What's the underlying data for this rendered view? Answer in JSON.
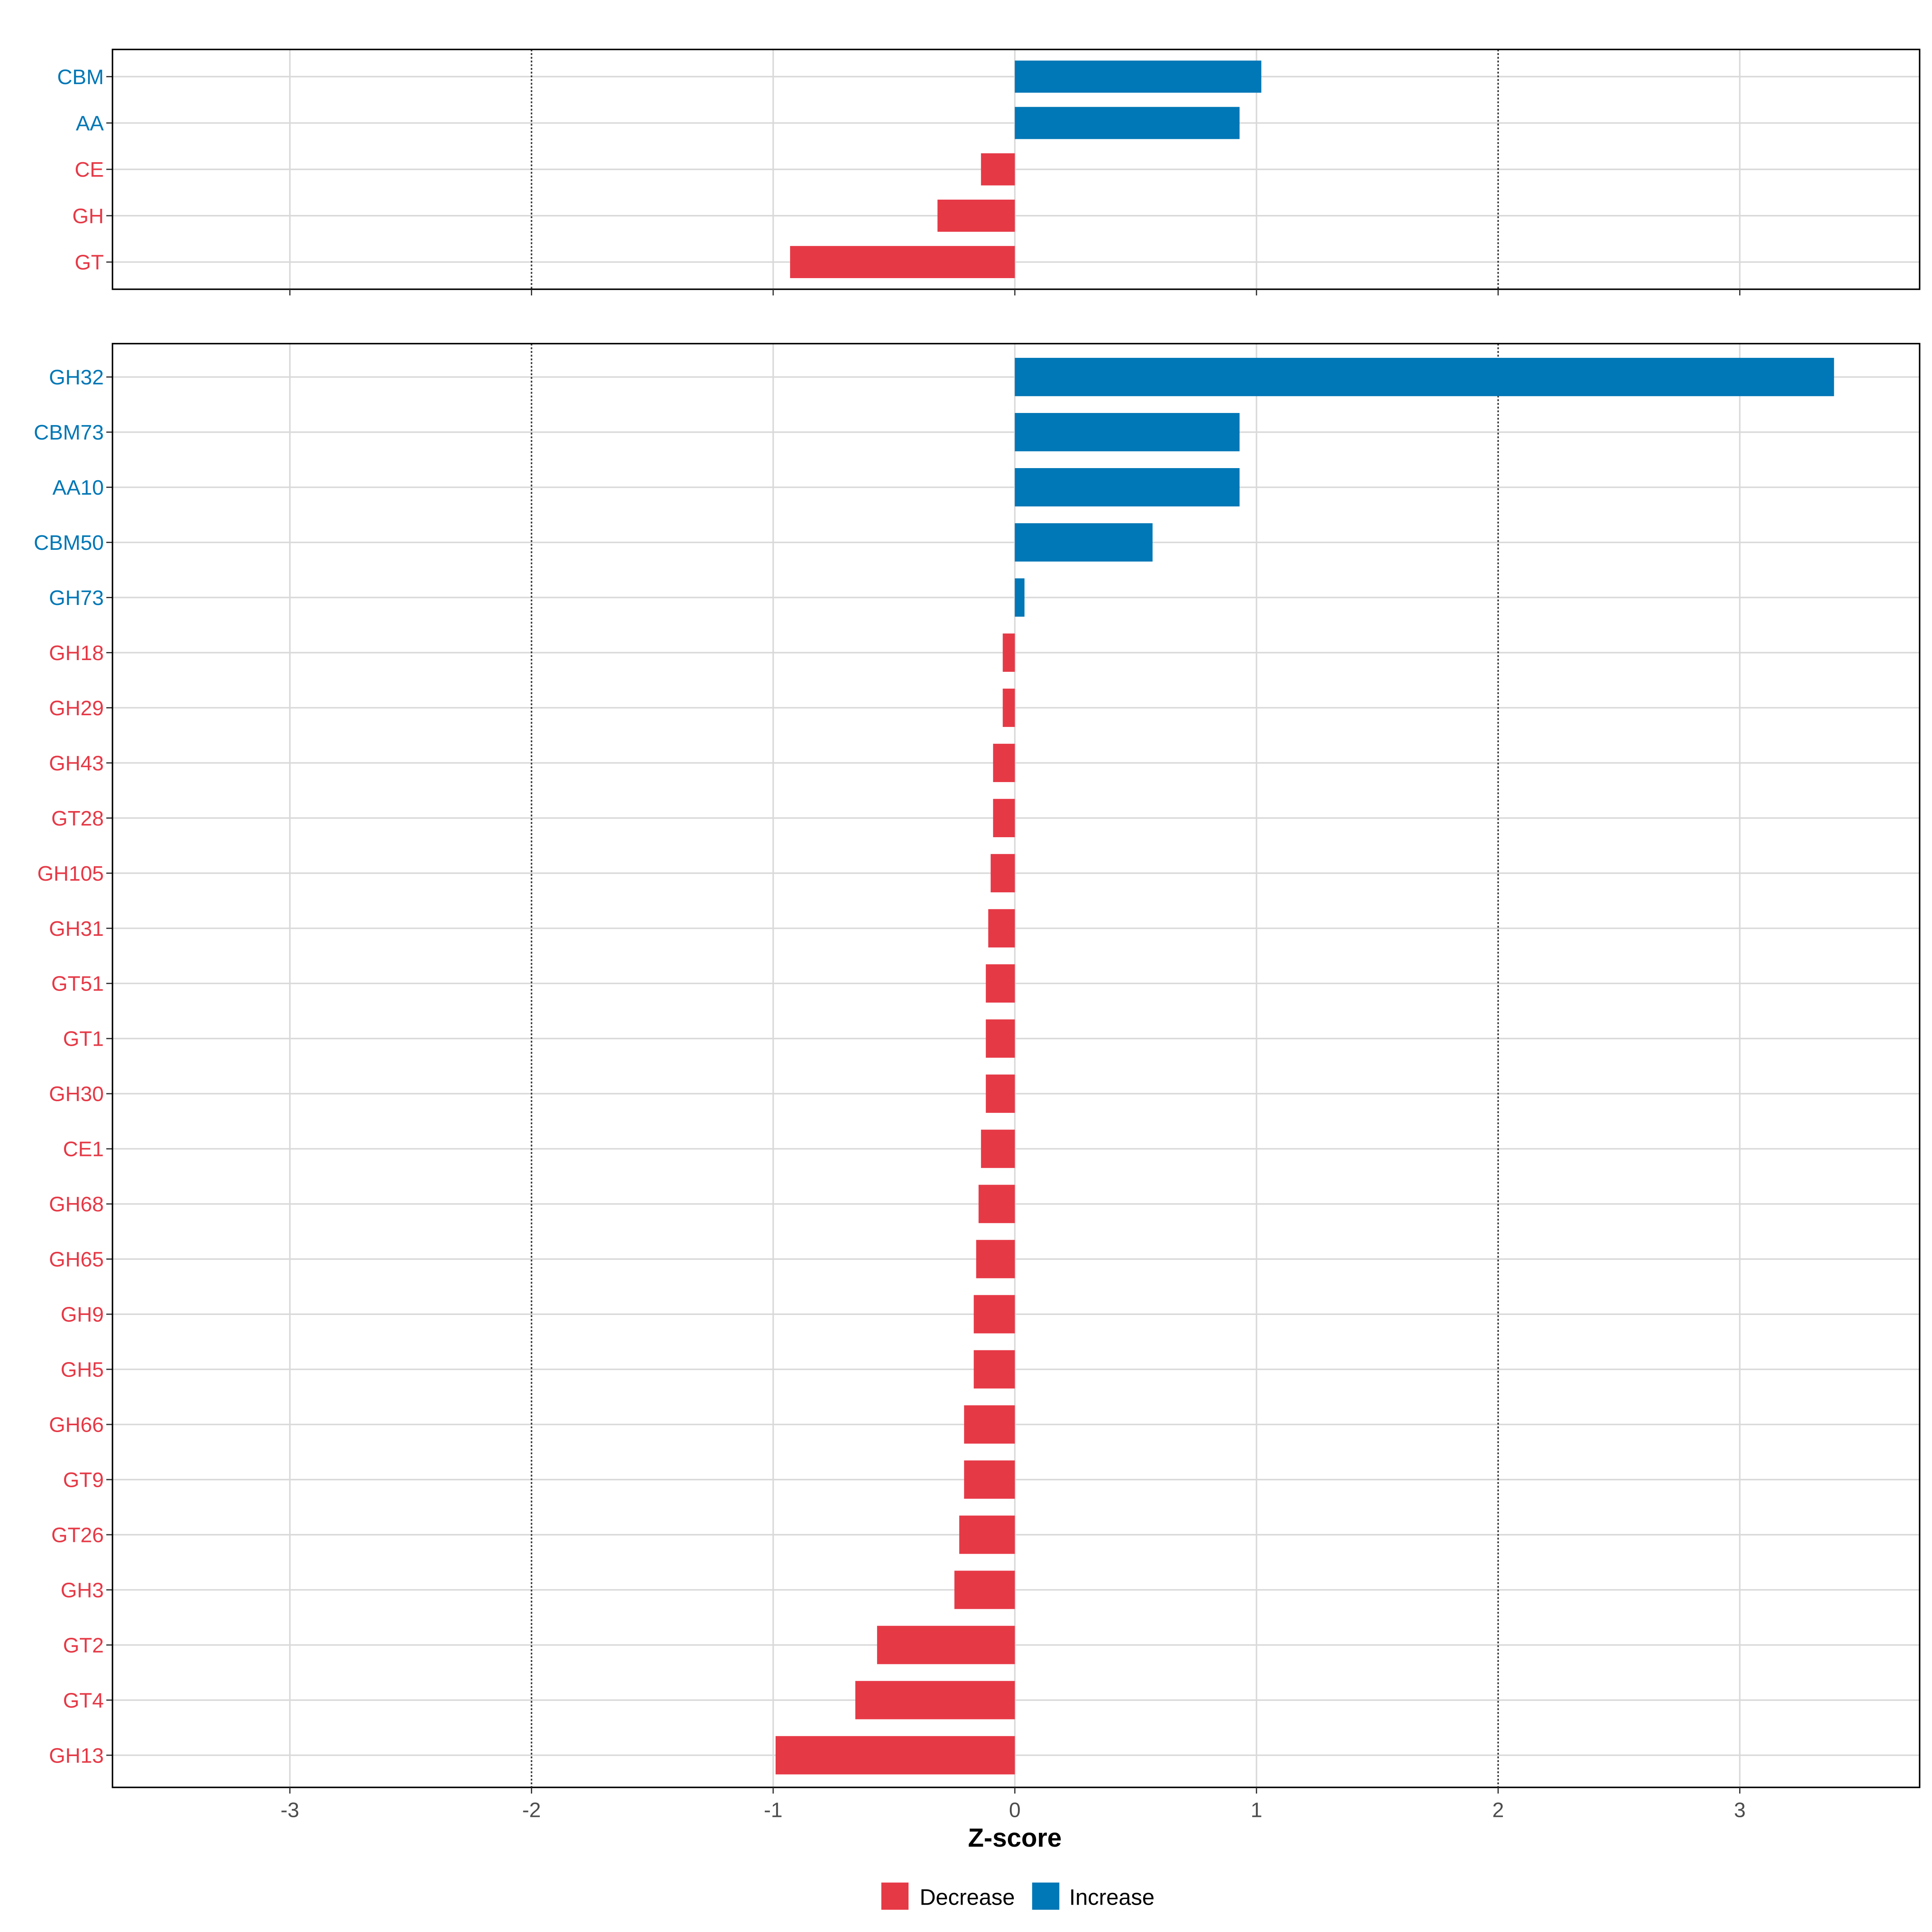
{
  "chart_data": [
    {
      "type": "bar",
      "orientation": "horizontal",
      "panel": "top",
      "categories": [
        "CBM",
        "AA",
        "CE",
        "GH",
        "GT"
      ],
      "values": [
        1.02,
        0.93,
        -0.14,
        -0.32,
        -0.93
      ],
      "xlim": [
        -3.73,
        3.74
      ],
      "grid": true,
      "reference_lines": [
        -2,
        2
      ]
    },
    {
      "type": "bar",
      "orientation": "horizontal",
      "panel": "bottom",
      "categories": [
        "GH32",
        "CBM73",
        "AA10",
        "CBM50",
        "GH73",
        "GH18",
        "GH29",
        "GH43",
        "GT28",
        "GH105",
        "GH31",
        "GT51",
        "GT1",
        "GH30",
        "CE1",
        "GH68",
        "GH65",
        "GH9",
        "GH5",
        "GH66",
        "GT9",
        "GT26",
        "GH3",
        "GT2",
        "GT4",
        "GH13"
      ],
      "values": [
        3.39,
        0.93,
        0.93,
        0.57,
        0.04,
        -0.05,
        -0.05,
        -0.09,
        -0.09,
        -0.1,
        -0.11,
        -0.12,
        -0.12,
        -0.12,
        -0.14,
        -0.15,
        -0.16,
        -0.17,
        -0.17,
        -0.21,
        -0.21,
        -0.23,
        -0.25,
        -0.57,
        -0.66,
        -0.99
      ],
      "xlim": [
        -3.73,
        3.74
      ],
      "grid": true,
      "reference_lines": [
        -2,
        2
      ]
    }
  ],
  "axis": {
    "xlabel": "Z-score",
    "ticks": [
      "-3",
      "-2",
      "-1",
      "0",
      "1",
      "2",
      "3"
    ],
    "tick_values": [
      -3,
      -2,
      -1,
      0,
      1,
      2,
      3
    ]
  },
  "legend": {
    "placement": "bottom",
    "items": [
      {
        "label": "Decrease",
        "color": "#E63946"
      },
      {
        "label": "Increase",
        "color": "#0077B6"
      }
    ]
  },
  "colors": {
    "decrease": "#E63946",
    "increase": "#0077B6",
    "grid": "#D9D9D9"
  }
}
